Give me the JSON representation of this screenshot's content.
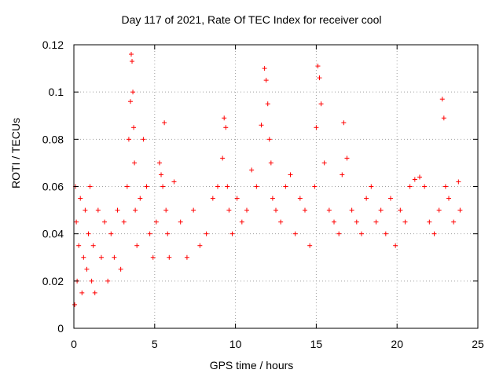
{
  "chart_data": {
    "type": "scatter",
    "title": "Day 117 of 2021, Rate Of TEC Index for receiver cool",
    "xlabel": "GPS time / hours",
    "ylabel": "ROTI / TECUs",
    "xlim": [
      0,
      25
    ],
    "ylim": [
      0,
      0.12
    ],
    "xticks": [
      "0",
      "5",
      "10",
      "15",
      "20",
      "25"
    ],
    "yticks": [
      "0",
      "0.02",
      "0.04",
      "0.06",
      "0.08",
      "0.1",
      "0.12"
    ],
    "grid": true,
    "marker": "+",
    "color": "#ff0000",
    "series": [
      {
        "x": [
          0.05,
          0.1,
          0.15,
          0.2,
          0.3,
          0.4,
          0.5,
          0.6,
          0.7,
          0.8,
          0.9,
          1.0,
          1.1,
          1.2,
          1.3,
          1.5,
          1.7,
          1.9,
          2.1,
          2.3,
          2.5,
          2.7,
          2.9,
          3.1,
          3.3,
          3.4,
          3.5,
          3.55,
          3.6,
          3.65,
          3.7,
          3.75,
          3.8,
          3.9,
          4.1,
          4.3,
          4.5,
          4.7,
          4.9,
          5.1,
          5.3,
          5.4,
          5.5,
          5.6,
          5.7,
          5.8,
          5.9,
          6.2,
          6.6,
          7.0,
          7.4,
          7.8,
          8.2,
          8.6,
          8.9,
          9.2,
          9.3,
          9.4,
          9.5,
          9.6,
          9.8,
          10.1,
          10.4,
          10.7,
          11.0,
          11.3,
          11.6,
          11.8,
          11.9,
          12.0,
          12.1,
          12.2,
          12.3,
          12.5,
          12.8,
          13.1,
          13.4,
          13.7,
          14.0,
          14.3,
          14.6,
          14.9,
          15.0,
          15.1,
          15.2,
          15.3,
          15.5,
          15.8,
          16.1,
          16.4,
          16.6,
          16.7,
          16.9,
          17.2,
          17.5,
          17.8,
          18.1,
          18.4,
          18.7,
          19.0,
          19.3,
          19.6,
          19.9,
          20.2,
          20.5,
          20.8,
          21.1,
          21.4,
          21.7,
          22.0,
          22.3,
          22.6,
          22.8,
          22.9,
          23.0,
          23.2,
          23.5,
          23.8,
          23.9
        ],
        "y": [
          0.01,
          0.06,
          0.045,
          0.02,
          0.035,
          0.055,
          0.015,
          0.03,
          0.05,
          0.025,
          0.04,
          0.06,
          0.02,
          0.035,
          0.015,
          0.05,
          0.03,
          0.045,
          0.02,
          0.04,
          0.03,
          0.05,
          0.025,
          0.045,
          0.06,
          0.08,
          0.096,
          0.116,
          0.113,
          0.1,
          0.085,
          0.07,
          0.05,
          0.035,
          0.055,
          0.08,
          0.06,
          0.04,
          0.03,
          0.045,
          0.07,
          0.065,
          0.06,
          0.087,
          0.05,
          0.04,
          0.03,
          0.062,
          0.045,
          0.03,
          0.05,
          0.035,
          0.04,
          0.055,
          0.06,
          0.072,
          0.089,
          0.085,
          0.06,
          0.05,
          0.04,
          0.055,
          0.045,
          0.05,
          0.067,
          0.06,
          0.086,
          0.11,
          0.105,
          0.095,
          0.08,
          0.07,
          0.055,
          0.05,
          0.045,
          0.06,
          0.065,
          0.04,
          0.055,
          0.05,
          0.035,
          0.06,
          0.085,
          0.111,
          0.106,
          0.095,
          0.07,
          0.05,
          0.045,
          0.04,
          0.065,
          0.087,
          0.072,
          0.05,
          0.045,
          0.04,
          0.055,
          0.06,
          0.045,
          0.05,
          0.04,
          0.055,
          0.035,
          0.05,
          0.045,
          0.06,
          0.063,
          0.064,
          0.06,
          0.045,
          0.04,
          0.05,
          0.097,
          0.089,
          0.06,
          0.055,
          0.045,
          0.062,
          0.05
        ]
      }
    ]
  }
}
